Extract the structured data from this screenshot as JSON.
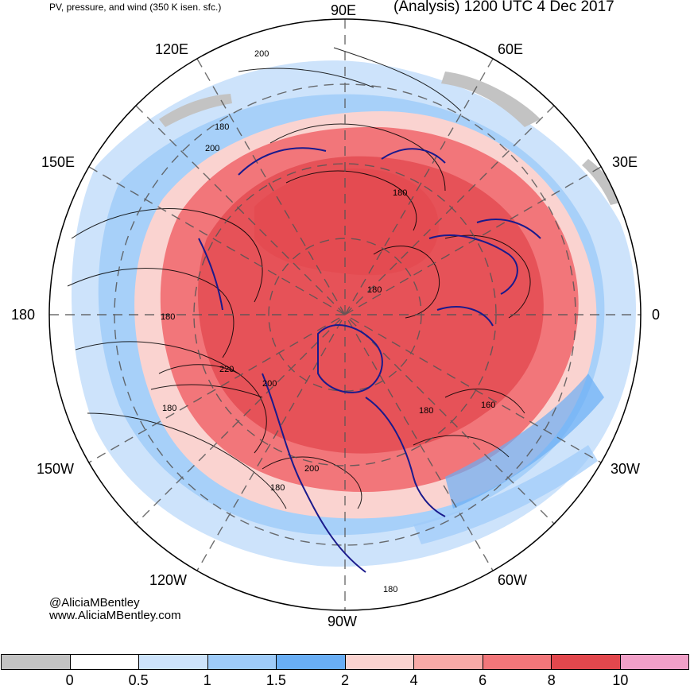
{
  "header": {
    "left_title": "PV, pressure, and wind (350 K isen. sfc.)",
    "right_title": "(Analysis) 1200 UTC 4 Dec 2017"
  },
  "longitude_labels": {
    "e90": "90E",
    "e60": "60E",
    "e120": "120E",
    "e150": "150E",
    "e30": "30E",
    "w180": "180",
    "zero": "0",
    "w150": "150W",
    "w30": "30W",
    "w120": "120W",
    "w60": "60W",
    "w90": "90W"
  },
  "contour_labels": [
    "200",
    "180",
    "200",
    "180",
    "180",
    "180",
    "220",
    "200",
    "180",
    "180",
    "160",
    "200",
    "180",
    "180"
  ],
  "credit": {
    "handle": "@AliciaMBentley",
    "website": "www.AliciaMBentley.com"
  },
  "colorbar": {
    "colors": [
      "#c3c3c3",
      "#ffffff",
      "#cde3fb",
      "#9ecbf9",
      "#69aef5",
      "#fad3d0",
      "#f8aaa7",
      "#f2767a",
      "#e2474d",
      "#f1a0c8"
    ],
    "labels": [
      "0",
      "0.5",
      "1",
      "1.5",
      "2",
      "4",
      "6",
      "8",
      "10"
    ]
  },
  "legend_fill_colors": {
    "pv_high": "#e2474d",
    "pv_mid": "#f2767a",
    "pv_low": "#fad3d0",
    "pv_blue_light": "#cde3fb",
    "pv_blue": "#9ecbf9",
    "gray": "#c3c3c3",
    "coast": "#1a1a8c"
  }
}
